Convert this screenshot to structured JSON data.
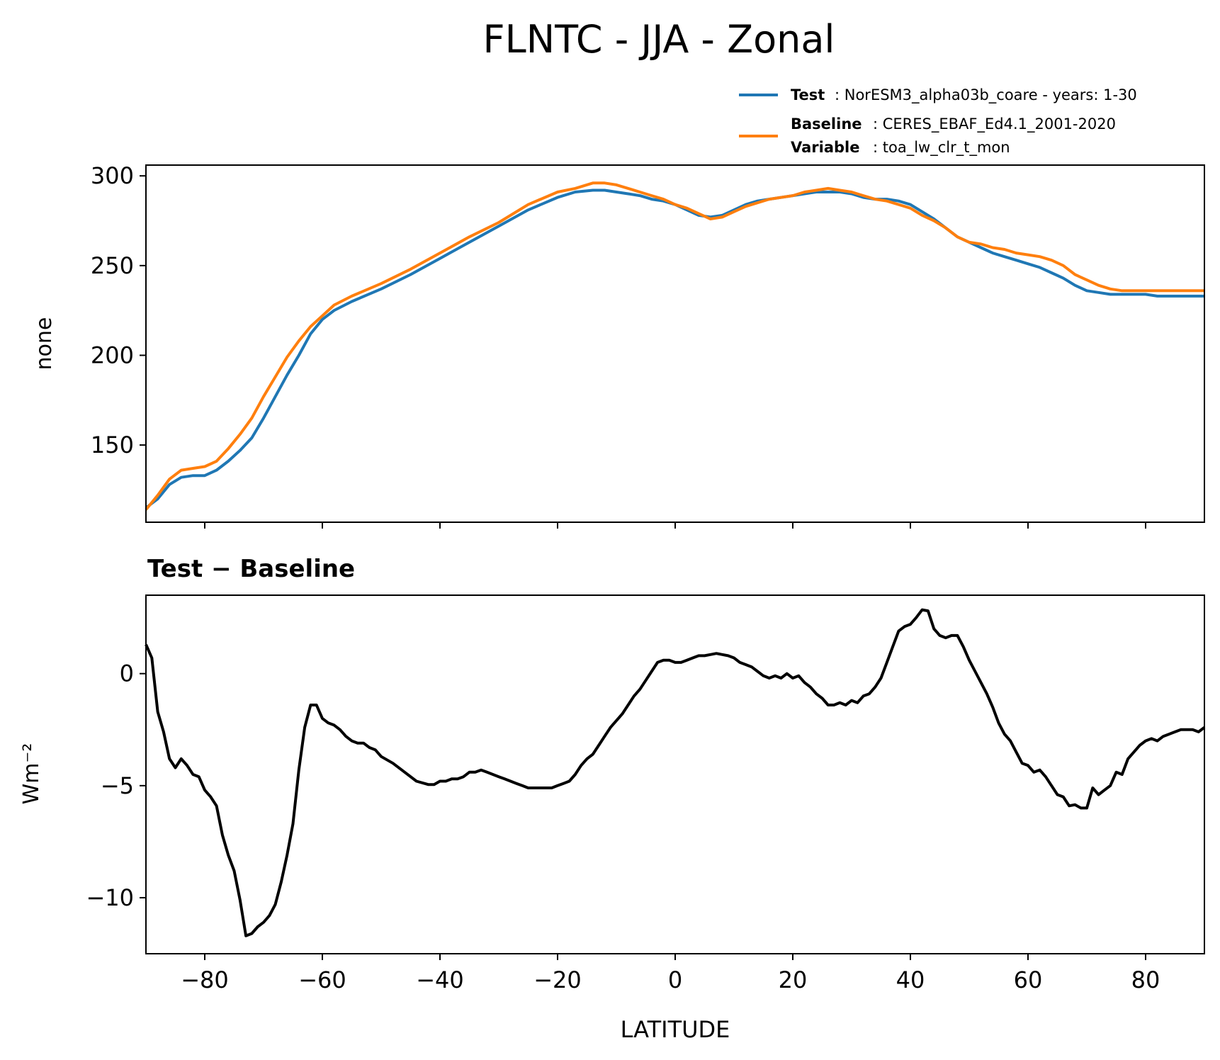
{
  "colors": {
    "test": "#1f77b4",
    "baseline": "#ff7f0e",
    "diff": "#000000"
  },
  "chart_data": [
    {
      "type": "line",
      "title": "FLNTC - JJA - Zonal",
      "xlabel": "",
      "ylabel": "none",
      "xlim": [
        -90,
        90
      ],
      "ylim": [
        107,
        306
      ],
      "yticks": [
        150,
        200,
        250,
        300
      ],
      "xticks": [
        -80,
        -60,
        -40,
        -20,
        0,
        20,
        40,
        60,
        80
      ],
      "legend": {
        "placement": "top-right, above axes",
        "entries": [
          {
            "label_bold": "Test",
            "label_text": ": NorESM3_alpha03b_coare - years: 1-30"
          },
          {
            "label_bold": "Baseline",
            "label_text": ": CERES_EBAF_Ed4.1_2001-2020",
            "label_bold2": "Variable",
            "label_text2": ": toa_lw_clr_t_mon"
          }
        ]
      },
      "x": [
        -90,
        -88,
        -86,
        -84,
        -82,
        -80,
        -78,
        -76,
        -74,
        -72,
        -70,
        -68,
        -66,
        -64,
        -62,
        -60,
        -58,
        -55,
        -50,
        -45,
        -40,
        -35,
        -30,
        -25,
        -20,
        -17,
        -14,
        -12,
        -10,
        -8,
        -6,
        -4,
        -2,
        0,
        2,
        4,
        6,
        8,
        10,
        12,
        14,
        16,
        18,
        20,
        22,
        24,
        26,
        28,
        30,
        32,
        34,
        36,
        38,
        40,
        42,
        44,
        46,
        48,
        50,
        52,
        54,
        56,
        58,
        60,
        62,
        64,
        66,
        68,
        70,
        72,
        74,
        76,
        78,
        80,
        82,
        84,
        86,
        88,
        90
      ],
      "series": [
        {
          "name": "Test",
          "values": [
            115,
            120,
            128,
            132,
            133,
            133,
            136,
            141,
            147,
            154,
            165,
            177,
            189,
            200,
            212,
            220,
            225,
            230,
            237,
            245,
            254,
            263,
            272,
            281,
            288,
            291,
            292,
            292,
            291,
            290,
            289,
            287,
            286,
            284,
            281,
            278,
            277,
            278,
            281,
            284,
            286,
            287,
            288,
            289,
            290,
            291,
            291,
            291,
            290,
            288,
            287,
            287,
            286,
            284,
            280,
            276,
            271,
            266,
            263,
            260,
            257,
            255,
            253,
            251,
            249,
            246,
            243,
            239,
            236,
            235,
            234,
            234,
            234,
            234,
            233,
            233,
            233,
            233,
            233
          ]
        },
        {
          "name": "Baseline",
          "values": [
            114,
            122,
            131,
            136,
            137,
            138,
            141,
            148,
            156,
            165,
            177,
            188,
            199,
            208,
            216,
            222,
            228,
            233,
            240,
            248,
            257,
            266,
            274,
            284,
            291,
            293,
            296,
            296,
            295,
            293,
            291,
            289,
            287,
            284,
            282,
            279,
            276,
            277,
            280,
            283,
            285,
            287,
            288,
            289,
            291,
            292,
            293,
            292,
            291,
            289,
            287,
            286,
            284,
            282,
            278,
            275,
            271,
            266,
            263,
            262,
            260,
            259,
            257,
            256,
            255,
            253,
            250,
            245,
            242,
            239,
            237,
            236,
            236,
            236,
            236,
            236,
            236,
            236,
            236
          ]
        }
      ]
    },
    {
      "type": "line",
      "title": "Test − Baseline",
      "xlabel": "LATITUDE",
      "ylabel": "Wm⁻²",
      "xlim": [
        -90,
        90
      ],
      "ylim": [
        -12.5,
        3.5
      ],
      "yticks": [
        -10,
        -5,
        0
      ],
      "xticks": [
        -80,
        -60,
        -40,
        -20,
        0,
        20,
        40,
        60,
        80
      ],
      "x": [
        -90,
        -89,
        -88,
        -87,
        -86,
        -85,
        -84,
        -83,
        -82,
        -81,
        -80,
        -79,
        -78,
        -77,
        -76,
        -75,
        -74,
        -73,
        -72,
        -71,
        -70,
        -69,
        -68,
        -67,
        -66,
        -65,
        -64,
        -63,
        -62,
        -61,
        -60,
        -59,
        -58,
        -57,
        -56,
        -55,
        -54,
        -53,
        -52,
        -51,
        -50,
        -48,
        -46,
        -44,
        -42,
        -41,
        -40,
        -39,
        -38,
        -37,
        -36,
        -35,
        -34,
        -33,
        -32,
        -31,
        -30,
        -29,
        -28,
        -27,
        -26,
        -25,
        -24,
        -23,
        -22,
        -21,
        -20,
        -19,
        -18,
        -17,
        -16,
        -15,
        -14,
        -13,
        -12,
        -11,
        -10,
        -9,
        -8,
        -7,
        -6,
        -5,
        -4,
        -3,
        -2,
        -1,
        0,
        1,
        2,
        3,
        4,
        5,
        6,
        7,
        8,
        9,
        10,
        11,
        12,
        13,
        14,
        15,
        16,
        17,
        18,
        19,
        20,
        21,
        22,
        23,
        24,
        25,
        26,
        27,
        28,
        29,
        30,
        31,
        32,
        33,
        34,
        35,
        36,
        37,
        38,
        39,
        40,
        41,
        42,
        43,
        44,
        45,
        46,
        47,
        48,
        49,
        50,
        51,
        52,
        53,
        54,
        55,
        56,
        57,
        58,
        59,
        60,
        61,
        62,
        63,
        64,
        65,
        66,
        67,
        68,
        69,
        70,
        71,
        72,
        73,
        74,
        75,
        76,
        77,
        78,
        79,
        80,
        81,
        82,
        83,
        84,
        85,
        86,
        87,
        88,
        89,
        90
      ],
      "series": [
        {
          "name": "Test − Baseline",
          "values": [
            1.3,
            0.7,
            -1.7,
            -2.6,
            -3.8,
            -4.2,
            -3.8,
            -4.1,
            -4.5,
            -4.6,
            -5.2,
            -5.5,
            -5.9,
            -7.2,
            -8.1,
            -8.8,
            -10.1,
            -11.7,
            -11.6,
            -11.3,
            -11.1,
            -10.8,
            -10.3,
            -9.3,
            -8.1,
            -6.7,
            -4.3,
            -2.4,
            -1.4,
            -1.4,
            -2.0,
            -2.2,
            -2.3,
            -2.5,
            -2.8,
            -3.0,
            -3.1,
            -3.1,
            -3.3,
            -3.4,
            -3.7,
            -4.0,
            -4.4,
            -4.8,
            -4.95,
            -4.95,
            -4.8,
            -4.8,
            -4.7,
            -4.7,
            -4.6,
            -4.4,
            -4.4,
            -4.3,
            -4.4,
            -4.5,
            -4.6,
            -4.7,
            -4.8,
            -4.9,
            -5.0,
            -5.1,
            -5.1,
            -5.1,
            -5.1,
            -5.1,
            -5.0,
            -4.9,
            -4.8,
            -4.5,
            -4.1,
            -3.8,
            -3.6,
            -3.2,
            -2.8,
            -2.4,
            -2.1,
            -1.8,
            -1.4,
            -1.0,
            -0.7,
            -0.3,
            0.1,
            0.5,
            0.6,
            0.6,
            0.5,
            0.5,
            0.6,
            0.7,
            0.8,
            0.8,
            0.85,
            0.9,
            0.85,
            0.8,
            0.7,
            0.5,
            0.4,
            0.3,
            0.1,
            -0.1,
            -0.2,
            -0.1,
            -0.2,
            0.0,
            -0.2,
            -0.1,
            -0.4,
            -0.6,
            -0.9,
            -1.1,
            -1.4,
            -1.4,
            -1.3,
            -1.4,
            -1.2,
            -1.3,
            -1.0,
            -0.9,
            -0.6,
            -0.2,
            0.5,
            1.2,
            1.9,
            2.1,
            2.2,
            2.5,
            2.85,
            2.8,
            2.0,
            1.7,
            1.6,
            1.7,
            1.7,
            1.2,
            0.6,
            0.1,
            -0.4,
            -0.9,
            -1.5,
            -2.2,
            -2.7,
            -3.0,
            -3.5,
            -4.0,
            -4.1,
            -4.4,
            -4.3,
            -4.6,
            -5.0,
            -5.4,
            -5.5,
            -5.9,
            -5.85,
            -6.0,
            -6.0,
            -5.1,
            -5.4,
            -5.2,
            -5.0,
            -4.4,
            -4.5,
            -3.8,
            -3.5,
            -3.2,
            -3.0,
            -2.9,
            -3.0,
            -2.8,
            -2.7,
            -2.6,
            -2.5,
            -2.5,
            -2.5,
            -2.6,
            -2.4
          ]
        }
      ]
    }
  ]
}
